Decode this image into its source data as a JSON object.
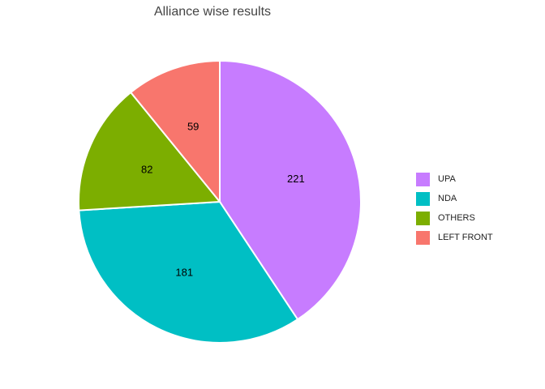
{
  "chart_data": {
    "type": "pie",
    "title": "Alliance wise results",
    "categories": [
      "UPA",
      "NDA",
      "OTHERS",
      "LEFT FRONT"
    ],
    "values": [
      221,
      181,
      82,
      59
    ],
    "colors": [
      "#C77CFF",
      "#00BFC4",
      "#7CAE00",
      "#F8766D"
    ],
    "legend_position": "right",
    "legend": [
      "UPA",
      "NDA",
      "OTHERS",
      "LEFT FRONT"
    ],
    "direction": "clockwise",
    "start_angle": "top"
  }
}
